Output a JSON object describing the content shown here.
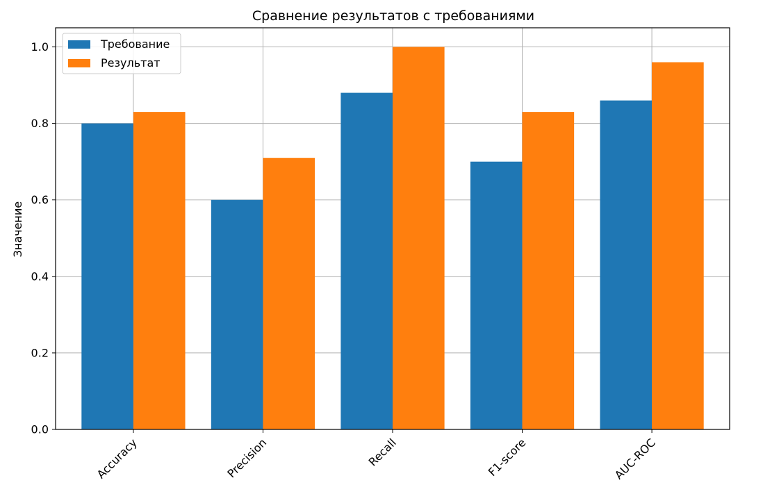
{
  "chart_data": {
    "type": "bar",
    "title": "Сравнение результатов с требованиями",
    "xlabel": "",
    "ylabel": "Значение",
    "categories": [
      "Accuracy",
      "Precision",
      "Recall",
      "F1-score",
      "AUC-ROC"
    ],
    "series": [
      {
        "name": "Требование",
        "values": [
          0.8,
          0.6,
          0.88,
          0.7,
          0.86
        ],
        "color": "#1f77b4"
      },
      {
        "name": "Результат",
        "values": [
          0.83,
          0.71,
          1.0,
          0.83,
          0.96
        ],
        "color": "#ff7f0e"
      }
    ],
    "ylim": [
      0,
      1.05
    ],
    "yticks": [
      "0.0",
      "0.2",
      "0.4",
      "0.6",
      "0.8",
      "1.0"
    ],
    "grid": true,
    "legend_position": "top-left",
    "xtick_rotation": -45
  }
}
